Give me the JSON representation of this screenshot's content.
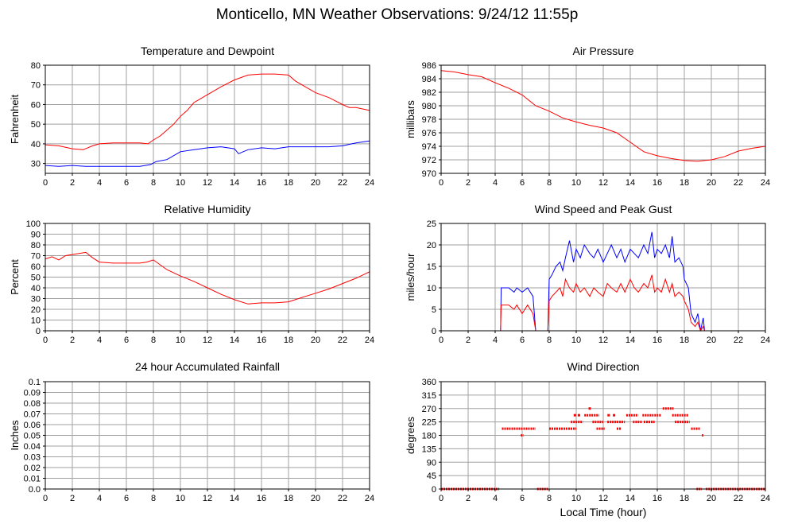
{
  "page": {
    "title": "Monticello, MN Weather Observations: 9/24/12 11:55p"
  },
  "x_axis_label": "Local Time (hour)",
  "colors": {
    "red": "#ff0000",
    "blue": "#0000ff",
    "grid": "#a0a0a0",
    "bg": "#ffffff"
  },
  "chart_data": [
    {
      "id": "temp",
      "type": "line",
      "title": "Temperature and Dewpoint",
      "ylabel": "Fahrenheit",
      "xlim": [
        0,
        24
      ],
      "ylim": [
        25,
        80
      ],
      "xticks": [
        0,
        2,
        4,
        6,
        8,
        10,
        12,
        14,
        16,
        18,
        20,
        22,
        24
      ],
      "yticks": [
        30,
        40,
        50,
        60,
        70,
        80
      ],
      "series": [
        {
          "color": "#ff0000",
          "x": [
            0,
            1,
            2,
            2.8,
            3.5,
            4,
            5,
            6,
            7,
            7.6,
            8,
            8.5,
            9,
            9.5,
            10,
            10.5,
            11,
            12,
            13,
            14,
            15,
            16,
            17,
            18,
            18.5,
            19,
            20,
            21,
            22,
            22.5,
            23,
            24
          ],
          "y": [
            39.5,
            39,
            37.5,
            37,
            39,
            40,
            40.5,
            40.5,
            40.5,
            40,
            42,
            44,
            47,
            50,
            54,
            57,
            61,
            65,
            69,
            72.5,
            75,
            75.5,
            75.5,
            75,
            72,
            70,
            66,
            63.5,
            60,
            58.5,
            58.5,
            57
          ]
        },
        {
          "color": "#0000ff",
          "x": [
            0,
            1,
            2,
            3,
            4,
            5,
            6,
            7,
            7.8,
            8.2,
            9,
            10,
            11,
            12,
            13,
            14,
            14.3,
            15,
            16,
            17,
            18,
            19,
            20,
            21,
            22,
            23,
            24
          ],
          "y": [
            29,
            28.5,
            29,
            28.5,
            28.5,
            28.5,
            28.5,
            28.5,
            29.5,
            31,
            32,
            36,
            37,
            38,
            38.5,
            37.5,
            35,
            37,
            38,
            37.5,
            38.5,
            38.5,
            38.5,
            38.5,
            39,
            40.5,
            41.5
          ]
        }
      ]
    },
    {
      "id": "pressure",
      "type": "line",
      "title": "Air Pressure",
      "ylabel": "millibars",
      "xlim": [
        0,
        24
      ],
      "ylim": [
        970,
        986
      ],
      "xticks": [
        0,
        2,
        4,
        6,
        8,
        10,
        12,
        14,
        16,
        18,
        20,
        22,
        24
      ],
      "yticks": [
        970,
        972,
        974,
        976,
        978,
        980,
        982,
        984,
        986
      ],
      "series": [
        {
          "color": "#ff0000",
          "x": [
            0,
            1,
            2,
            3,
            4,
            5,
            6,
            7,
            8,
            9,
            10,
            11,
            12,
            13,
            14,
            15,
            16,
            17,
            18,
            19,
            20,
            21,
            22,
            23,
            24
          ],
          "y": [
            985.2,
            985,
            984.6,
            984.3,
            983.4,
            982.6,
            981.6,
            980,
            979.2,
            978.2,
            977.6,
            977.1,
            976.7,
            976,
            974.6,
            973.2,
            972.6,
            972.2,
            971.9,
            971.8,
            972,
            972.5,
            973.3,
            973.7,
            974
          ]
        }
      ]
    },
    {
      "id": "rh",
      "type": "line",
      "title": "Relative Humidity",
      "ylabel": "Percent",
      "xlim": [
        0,
        24
      ],
      "ylim": [
        0,
        100
      ],
      "xticks": [
        0,
        2,
        4,
        6,
        8,
        10,
        12,
        14,
        16,
        18,
        20,
        22,
        24
      ],
      "yticks": [
        0,
        10,
        20,
        30,
        40,
        50,
        60,
        70,
        80,
        90,
        100
      ],
      "series": [
        {
          "color": "#ff0000",
          "x": [
            0,
            0.5,
            1,
            1.5,
            2,
            2.5,
            3,
            3.5,
            4,
            5,
            6,
            7,
            7.5,
            8,
            9,
            10,
            11,
            12,
            13,
            14,
            15,
            16,
            17,
            18,
            19,
            20,
            21,
            22,
            23,
            24
          ],
          "y": [
            67,
            69,
            66,
            70,
            71,
            72,
            73,
            68,
            64,
            63,
            63,
            63,
            64,
            66,
            57,
            51,
            46,
            40,
            34,
            29,
            25,
            26,
            26,
            27,
            31,
            35,
            39,
            44,
            49,
            55
          ]
        }
      ]
    },
    {
      "id": "wind",
      "type": "line",
      "title": "Wind Speed and Peak Gust",
      "ylabel": "miles/hour",
      "xlim": [
        0,
        24
      ],
      "ylim": [
        0,
        25
      ],
      "xticks": [
        0,
        2,
        4,
        6,
        8,
        10,
        12,
        14,
        16,
        18,
        20,
        22,
        24
      ],
      "yticks": [
        0,
        5,
        10,
        15,
        20,
        25
      ],
      "series": [
        {
          "color": "#0000ff",
          "x": [
            0,
            4.4,
            4.45,
            5,
            5.4,
            5.6,
            6,
            6.4,
            6.8,
            7,
            7.1,
            7.9,
            8,
            8.2,
            8.5,
            8.8,
            9,
            9.2,
            9.5,
            9.8,
            10,
            10.3,
            10.6,
            11,
            11.3,
            11.6,
            12,
            12.3,
            12.6,
            13,
            13.3,
            13.6,
            14,
            14.3,
            14.6,
            15,
            15.3,
            15.6,
            15.8,
            16,
            16.3,
            16.6,
            16.9,
            17.1,
            17.3,
            17.6,
            17.9,
            18,
            18.3,
            18.5,
            18.8,
            19,
            19.2,
            19.4,
            19.5,
            24
          ],
          "y": [
            0,
            0,
            10,
            10,
            9,
            10,
            9,
            10,
            8,
            0,
            0,
            0,
            12,
            13,
            15,
            16,
            14,
            17,
            21,
            16,
            19,
            17,
            20,
            18,
            17,
            19,
            16,
            18,
            20,
            17,
            19,
            16,
            19,
            18,
            17,
            20,
            18,
            23,
            17,
            19,
            18,
            20,
            17,
            22,
            16,
            17,
            15,
            12,
            10,
            4,
            2,
            4,
            0,
            3,
            0,
            0
          ]
        },
        {
          "color": "#ff0000",
          "x": [
            0,
            4.4,
            4.45,
            5,
            5.4,
            5.6,
            6,
            6.4,
            6.8,
            7,
            7.1,
            7.9,
            8,
            8.2,
            8.5,
            8.8,
            9,
            9.2,
            9.5,
            9.8,
            10,
            10.3,
            10.6,
            11,
            11.3,
            11.6,
            12,
            12.3,
            12.6,
            13,
            13.3,
            13.6,
            14,
            14.3,
            14.6,
            15,
            15.3,
            15.6,
            15.8,
            16,
            16.3,
            16.6,
            16.9,
            17.1,
            17.3,
            17.6,
            17.9,
            18,
            18.3,
            18.5,
            18.8,
            19,
            19.2,
            19.4,
            19.5,
            24
          ],
          "y": [
            0,
            0,
            6,
            6,
            5,
            6,
            4,
            6,
            4,
            0,
            0,
            0,
            7,
            8,
            9,
            10,
            8,
            12,
            10,
            9,
            11,
            9,
            10,
            8,
            10,
            9,
            8,
            11,
            10,
            9,
            11,
            9,
            12,
            10,
            9,
            11,
            10,
            13,
            9,
            10,
            9,
            12,
            9,
            11,
            8,
            9,
            8,
            7,
            5,
            2,
            1,
            2,
            0,
            1,
            0,
            0
          ]
        }
      ]
    },
    {
      "id": "rain",
      "type": "line",
      "title": "24 hour Accumulated Rainfall",
      "ylabel": "Inches",
      "xlim": [
        0,
        24
      ],
      "ylim": [
        0,
        0.1
      ],
      "xticks": [
        0,
        2,
        4,
        6,
        8,
        10,
        12,
        14,
        16,
        18,
        20,
        22,
        24
      ],
      "yticks": [
        0,
        0.01,
        0.02,
        0.03,
        0.04,
        0.05,
        0.06,
        0.07,
        0.08,
        0.09,
        0.1
      ],
      "ytick_labels": [
        "0.0",
        "0.01",
        "0.02",
        "0.03",
        "0.04",
        "0.05",
        "0.06",
        "0.07",
        "0.08",
        "0.09",
        "0.1"
      ],
      "series": [
        {
          "color": "#ff0000",
          "x": [
            0,
            24
          ],
          "y": [
            0,
            0
          ]
        }
      ]
    },
    {
      "id": "winddir",
      "type": "scatter",
      "title": "Wind Direction",
      "ylabel": "degrees",
      "xlim": [
        0,
        24
      ],
      "ylim": [
        0,
        360
      ],
      "xticks": [
        0,
        2,
        4,
        6,
        8,
        10,
        12,
        14,
        16,
        18,
        20,
        22,
        24
      ],
      "yticks": [
        0,
        45,
        90,
        135,
        180,
        225,
        270,
        315,
        360
      ],
      "series": [
        {
          "color": "#ff0000",
          "segments": [
            {
              "x0": 0,
              "x1": 4.3,
              "y": 0
            },
            {
              "x0": 4.5,
              "x1": 7.0,
              "y": 202.5
            },
            {
              "x0": 5.9,
              "x1": 6.1,
              "y": 180
            },
            {
              "x0": 7.1,
              "x1": 7.9,
              "y": 0
            },
            {
              "x0": 8.0,
              "x1": 10.0,
              "y": 202.5
            },
            {
              "x0": 9.6,
              "x1": 10.5,
              "y": 225
            },
            {
              "x0": 10.6,
              "x1": 11.7,
              "y": 247.5
            },
            {
              "x0": 11.2,
              "x1": 12.0,
              "y": 225
            },
            {
              "x0": 11.5,
              "x1": 12.1,
              "y": 202.5
            },
            {
              "x0": 12.3,
              "x1": 13.6,
              "y": 225
            },
            {
              "x0": 13.0,
              "x1": 13.3,
              "y": 202.5
            },
            {
              "x0": 13.7,
              "x1": 14.6,
              "y": 247.5
            },
            {
              "x0": 14.2,
              "x1": 14.9,
              "y": 225
            },
            {
              "x0": 14.9,
              "x1": 16.3,
              "y": 247.5
            },
            {
              "x0": 15.0,
              "x1": 15.8,
              "y": 225
            },
            {
              "x0": 16.4,
              "x1": 17.2,
              "y": 270
            },
            {
              "x0": 17.1,
              "x1": 18.3,
              "y": 247.5
            },
            {
              "x0": 17.3,
              "x1": 18.4,
              "y": 225
            },
            {
              "x0": 18.5,
              "x1": 19.2,
              "y": 202.5
            },
            {
              "x0": 19.3,
              "x1": 19.4,
              "y": 180
            },
            {
              "x0": 18.9,
              "x1": 19.3,
              "y": 0
            },
            {
              "x0": 19.6,
              "x1": 24,
              "y": 0
            }
          ],
          "points": [
            {
              "x": 11.0,
              "y": 270
            },
            {
              "x": 10.2,
              "y": 247.5
            },
            {
              "x": 9.9,
              "y": 247.5
            },
            {
              "x": 12.4,
              "y": 247.5
            },
            {
              "x": 12.8,
              "y": 247.5
            }
          ]
        }
      ]
    }
  ]
}
